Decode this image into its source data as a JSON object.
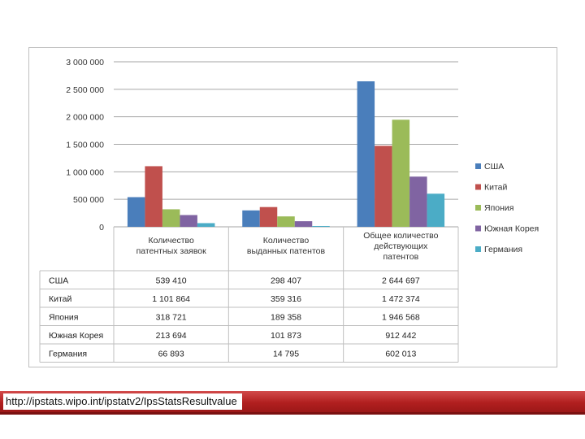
{
  "chart_data": {
    "type": "bar",
    "categories": [
      [
        "Количество",
        "патентных заявок"
      ],
      [
        "Количество",
        "выданных патентов"
      ],
      [
        "Общее количество",
        "действующих",
        "патентов"
      ]
    ],
    "series": [
      {
        "name": "США",
        "color": "#4a7ebb",
        "values": [
          539410,
          298407,
          2644697
        ],
        "labels": [
          "539 410",
          "298 407",
          "2 644 697"
        ]
      },
      {
        "name": "Китай",
        "color": "#c0504d",
        "values": [
          1101864,
          359316,
          1472374
        ],
        "labels": [
          "1 101 864",
          "359 316",
          "1 472 374"
        ]
      },
      {
        "name": "Япония",
        "color": "#9bbb59",
        "values": [
          318721,
          189358,
          1946568
        ],
        "labels": [
          "318 721",
          "189 358",
          "1 946 568"
        ]
      },
      {
        "name": "Южная Корея",
        "color": "#8064a2",
        "values": [
          213694,
          101873,
          912442
        ],
        "labels": [
          "213 694",
          "101 873",
          "912 442"
        ]
      },
      {
        "name": "Германия",
        "color": "#4bacc6",
        "values": [
          66893,
          14795,
          602013
        ],
        "labels": [
          "66 893",
          "14 795",
          "602 013"
        ]
      }
    ],
    "yticks": [
      {
        "value": 0,
        "label": "0"
      },
      {
        "value": 500000,
        "label": "500 000"
      },
      {
        "value": 1000000,
        "label": "1 000 000"
      },
      {
        "value": 1500000,
        "label": "1 500 000"
      },
      {
        "value": 2000000,
        "label": "2 000 000"
      },
      {
        "value": 2500000,
        "label": "2 500 000"
      },
      {
        "value": 3000000,
        "label": "3 000 000"
      }
    ],
    "ylim": [
      0,
      3000000
    ],
    "grid": true,
    "legend_position": "right",
    "data_table": true
  },
  "footer": {
    "source_url": "http://ipstats.wipo.int/ipstatv2/IpsStatsResultvalue"
  }
}
